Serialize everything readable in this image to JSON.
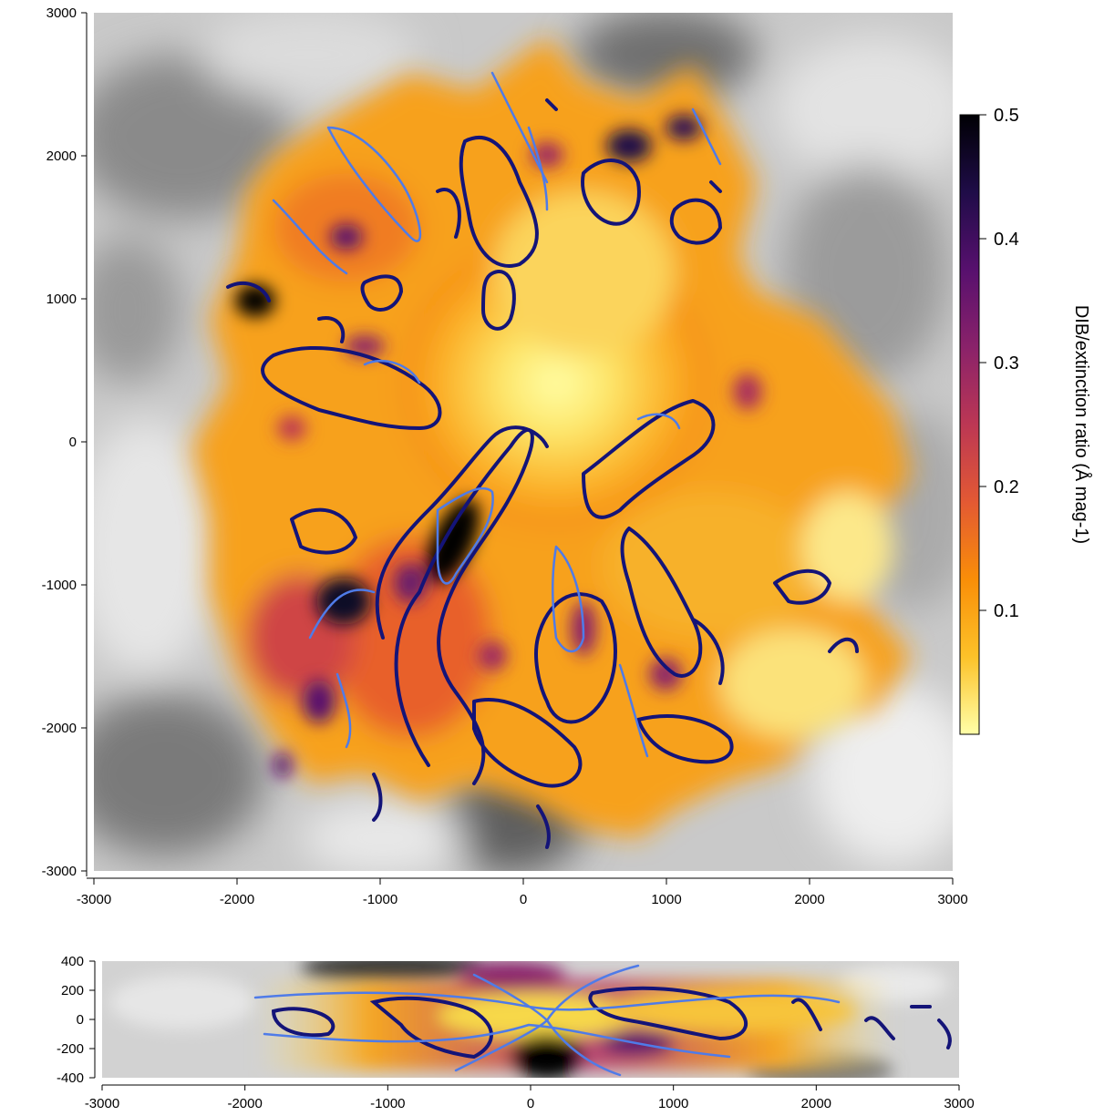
{
  "chart_data": [
    {
      "type": "heatmap",
      "panel": "main",
      "title": "",
      "xlabel": "",
      "ylabel": "",
      "xlim": [
        -3000,
        3000
      ],
      "ylim": [
        -3000,
        3000
      ],
      "x_ticks": [
        -3000,
        -2000,
        -1000,
        0,
        1000,
        2000,
        3000
      ],
      "y_ticks": [
        -3000,
        -2000,
        -1000,
        0,
        1000,
        2000,
        3000
      ],
      "grid": false,
      "background": "grayscale extinction density map",
      "overlay": "dark-blue and light-blue density contours",
      "colors": {
        "contour_dark": "#141478",
        "contour_light": "#4f7be8"
      },
      "ratio_hotspots": [
        {
          "x": -500,
          "y": -600,
          "v": 0.5
        },
        {
          "x": -1300,
          "y": -1100,
          "v": 0.48
        },
        {
          "x": -1850,
          "y": 1000,
          "v": 0.5
        },
        {
          "x": 700,
          "y": 2100,
          "v": 0.45
        },
        {
          "x": 1150,
          "y": 2250,
          "v": 0.42
        },
        {
          "x": -1300,
          "y": 1600,
          "v": 0.38
        },
        {
          "x": -1200,
          "y": -1800,
          "v": 0.35
        },
        {
          "x": 500,
          "y": -1200,
          "v": 0.3
        },
        {
          "x": -300,
          "y": -1500,
          "v": 0.3
        },
        {
          "x": 900,
          "y": -1300,
          "v": 0.3
        },
        {
          "x": -1000,
          "y": 800,
          "v": 0.25
        },
        {
          "x": 1500,
          "y": -300,
          "v": 0.25
        }
      ]
    },
    {
      "type": "heatmap",
      "panel": "bottom",
      "title": "",
      "xlabel": "",
      "ylabel": "",
      "xlim": [
        -3000,
        3000
      ],
      "ylim": [
        -400,
        400
      ],
      "x_ticks": [
        -3000,
        -2000,
        -1000,
        0,
        1000,
        2000,
        3000
      ],
      "y_ticks": [
        -400,
        -200,
        0,
        200,
        400
      ],
      "grid": false
    }
  ],
  "colorbar": {
    "label": "DIB/extinction ratio (Å mag-1)",
    "range": [
      0,
      0.5
    ],
    "ticks": [
      0.1,
      0.2,
      0.3,
      0.4,
      0.5
    ],
    "colormap": [
      "#ffffa8",
      "#fcc229",
      "#f98e08",
      "#e35933",
      "#bc3754",
      "#8a226a",
      "#57106e",
      "#1f0c48",
      "#000004"
    ]
  }
}
